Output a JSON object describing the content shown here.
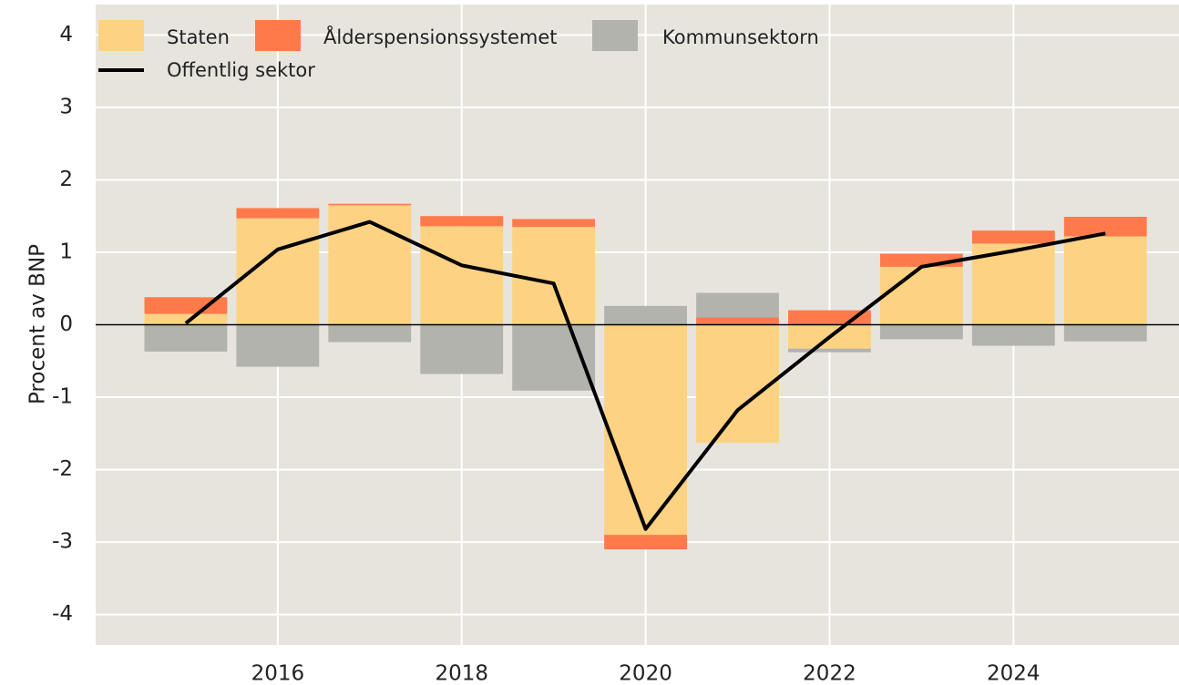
{
  "chart_data": {
    "type": "bar",
    "stacked": true,
    "y_label": "Procent av BNP",
    "x": [
      2015,
      2016,
      2017,
      2018,
      2019,
      2020,
      2021,
      2022,
      2023,
      2024,
      2025
    ],
    "xlim": [
      2014.02,
      2025.8
    ],
    "xticks": [
      2016,
      2018,
      2020,
      2022,
      2024
    ],
    "ylim": [
      -4.42,
      4.42
    ],
    "yticks": [
      -4,
      -3,
      -2,
      -1,
      0,
      1,
      2,
      3,
      4
    ],
    "grid": true,
    "legend": "top-left",
    "series": [
      {
        "name": "Staten",
        "type": "bar",
        "color": "#fdd282",
        "values": [
          0.15,
          1.47,
          1.65,
          1.36,
          1.35,
          -2.9,
          -1.63,
          -0.33,
          0.8,
          1.12,
          1.22
        ]
      },
      {
        "name": "Ålderspensionssystemet",
        "type": "bar",
        "color": "#ff7a4a",
        "values": [
          0.23,
          0.14,
          0.02,
          0.14,
          0.11,
          -0.2,
          0.1,
          0.2,
          0.18,
          0.18,
          0.27
        ]
      },
      {
        "name": "Kommunsektorn",
        "type": "bar",
        "color": "#b2b3ad",
        "values": [
          -0.37,
          -0.58,
          -0.24,
          -0.68,
          -0.91,
          0.26,
          0.34,
          -0.05,
          -0.2,
          -0.29,
          -0.23
        ]
      },
      {
        "name": "Offentlig sektor",
        "type": "line",
        "color": "#000000",
        "values": [
          0.02,
          1.04,
          1.42,
          0.82,
          0.57,
          -2.82,
          -1.18,
          -0.17,
          0.8,
          1.02,
          1.26
        ]
      }
    ]
  }
}
